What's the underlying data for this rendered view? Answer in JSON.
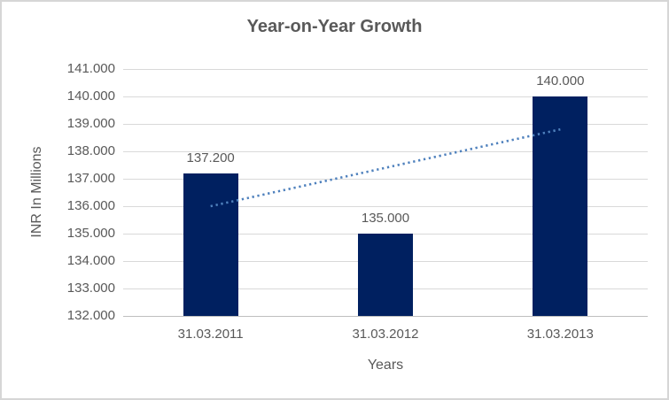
{
  "chart_data": {
    "type": "bar",
    "title": "Year-on-Year Growth",
    "xlabel": "Years",
    "ylabel": "INR In Millions",
    "categories": [
      "31.03.2011",
      "31.03.2012",
      "31.03.2013"
    ],
    "values": [
      137.2,
      135.0,
      140.0
    ],
    "data_labels": [
      "137.200",
      "135.000",
      "140.000"
    ],
    "y_tick_labels": [
      "141.000",
      "140.000",
      "139.000",
      "138.000",
      "137.000",
      "136.000",
      "135.000",
      "134.000",
      "133.000",
      "132.000"
    ],
    "y_tick_values": [
      141,
      140,
      139,
      138,
      137,
      136,
      135,
      134,
      133,
      132
    ],
    "ylim": [
      132,
      141
    ],
    "grid": true,
    "legend": "none",
    "trendline": {
      "type": "linear",
      "style": "dotted",
      "start_value": 136.0,
      "end_value": 138.8
    },
    "colors": {
      "bar": "#002060",
      "trend": "#4f81bd",
      "grid": "#d9d9d9",
      "axis_line": "#bfbfbf",
      "text": "#595959",
      "frame_border": "#d6d6d6",
      "background": "#ffffff"
    }
  }
}
